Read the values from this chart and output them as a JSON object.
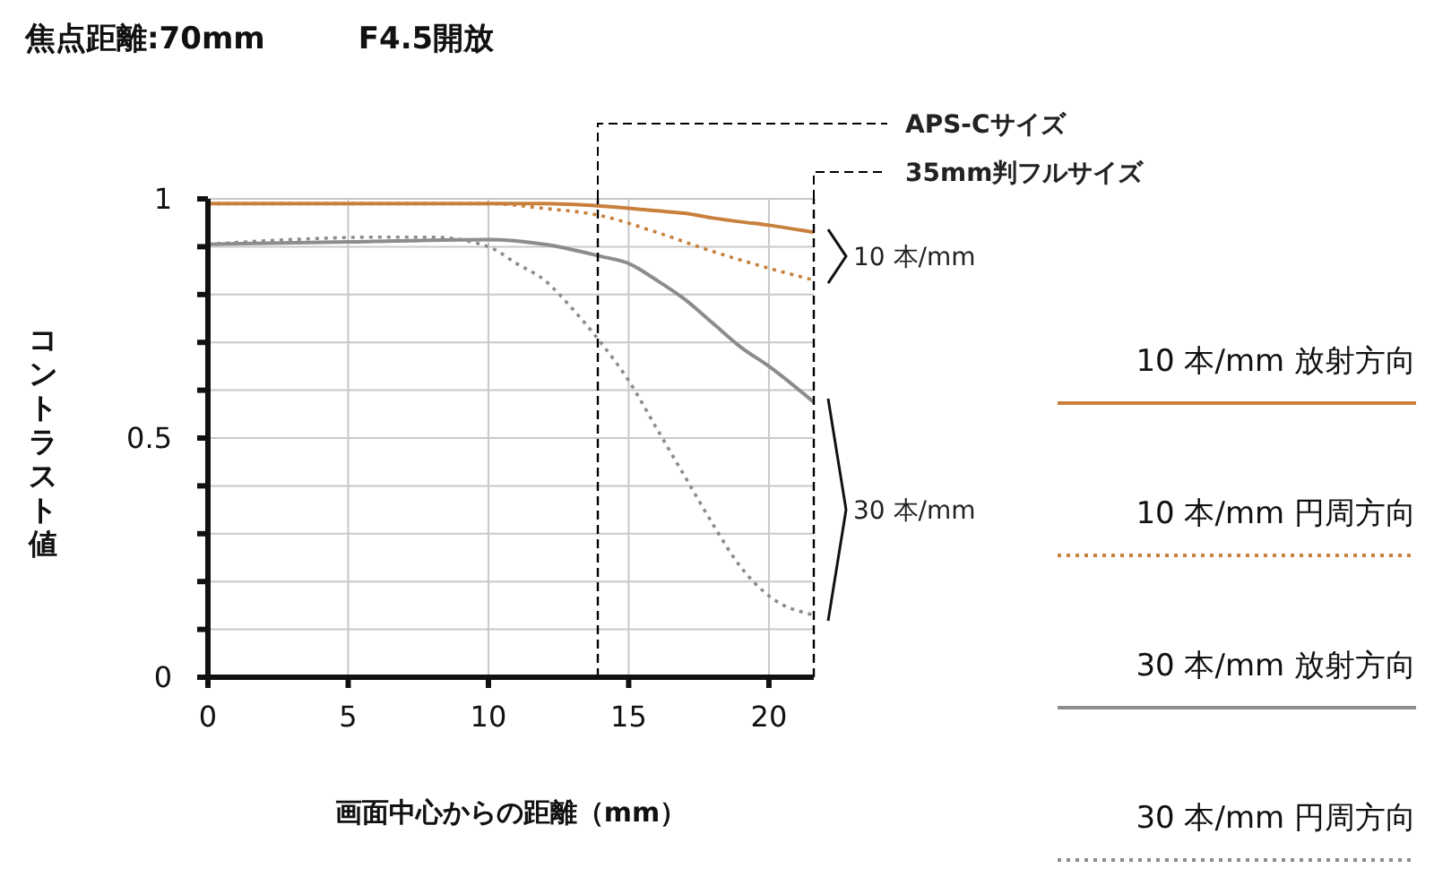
{
  "chart_data": {
    "type": "line",
    "title": "焦点距離:70mm",
    "subtitle": "F4.5開放",
    "xlabel": "画面中心からの距離（mm）",
    "ylabel": "コントラスト値",
    "xlim": [
      0,
      21.6
    ],
    "xticks": [
      0,
      5,
      10,
      15,
      20
    ],
    "ylim": [
      0,
      1
    ],
    "yticks": [
      0,
      {
        "value": 0.1,
        "label": null
      },
      {
        "value": 0.2,
        "label": null
      },
      {
        "value": 0.3,
        "label": null
      },
      {
        "value": 0.4,
        "label": null
      },
      0.5,
      {
        "value": 0.6,
        "label": null
      },
      {
        "value": 0.7,
        "label": null
      },
      {
        "value": 0.8,
        "label": null
      },
      {
        "value": 0.9,
        "label": null
      },
      1
    ],
    "grid": true,
    "legend": "right",
    "marker": "none",
    "series": [
      {
        "name": "10 本/mm 放射方向",
        "color": "#c8803c",
        "line_style": "solid",
        "x": [
          0,
          5,
          10,
          12,
          14,
          16,
          17,
          18,
          19,
          20,
          21.6
        ],
        "values": [
          0.99,
          0.99,
          0.99,
          0.99,
          0.985,
          0.975,
          0.97,
          0.96,
          0.952,
          0.945,
          0.93
        ]
      },
      {
        "name": "10 本/mm 円周方向",
        "color": "#c8803c",
        "line_style": "dotted",
        "x": [
          0,
          5,
          10,
          12,
          14,
          16,
          18,
          20,
          21.6
        ],
        "values": [
          0.99,
          0.99,
          0.99,
          0.98,
          0.965,
          0.93,
          0.89,
          0.855,
          0.83
        ]
      },
      {
        "name": "30 本/mm 放射方向",
        "color": "#8c8c8c",
        "line_style": "solid",
        "x": [
          0,
          5,
          10,
          12,
          14,
          15,
          16,
          17,
          18,
          19,
          20,
          21.6
        ],
        "values": [
          0.905,
          0.91,
          0.915,
          0.905,
          0.88,
          0.865,
          0.83,
          0.79,
          0.74,
          0.69,
          0.65,
          0.575
        ]
      },
      {
        "name": "30 本/mm 円周方向",
        "color": "#8c8c8c",
        "line_style": "dotted",
        "x": [
          0,
          3,
          6,
          8,
          10,
          11,
          12,
          13,
          14,
          15,
          16,
          17,
          18,
          19,
          20,
          21.6
        ],
        "values": [
          0.905,
          0.915,
          0.92,
          0.92,
          0.9,
          0.865,
          0.83,
          0.77,
          0.7,
          0.62,
          0.52,
          0.42,
          0.32,
          0.23,
          0.17,
          0.13
        ]
      }
    ],
    "ref_lines": [
      {
        "axis": "x",
        "value": 13.9,
        "label": "APS-Cサイズ",
        "color": "#000000",
        "line_style": "dashed"
      },
      {
        "axis": "x",
        "value": 21.6,
        "label": "35mm判フルサイズ",
        "color": "#000000",
        "line_style": "dashed"
      }
    ],
    "annotations": [
      {
        "text": "10 本/mm",
        "x": 21.6,
        "y": 0.88
      },
      {
        "text": "30 本/mm",
        "x": 21.6,
        "y": 0.35
      }
    ]
  }
}
